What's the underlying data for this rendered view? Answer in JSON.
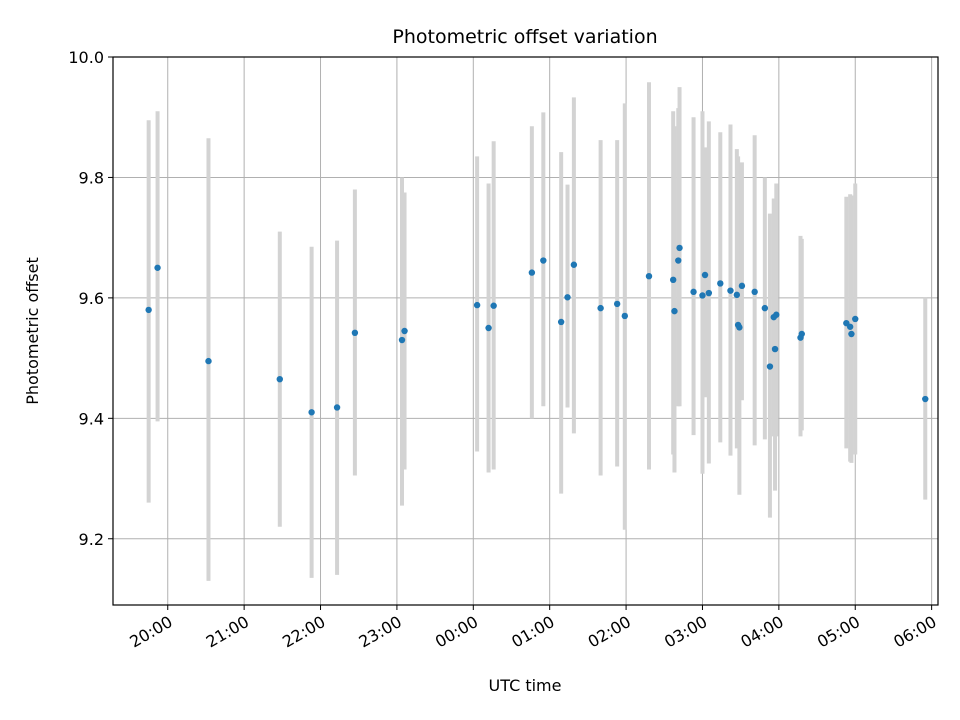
{
  "chart_data": {
    "type": "scatter",
    "title": "Photometric offset variation",
    "xlabel": "UTC time",
    "ylabel": "Photometric offset",
    "grid": true,
    "ylim": [
      9.09,
      10.0
    ],
    "xlim": [
      "19:17",
      "06:05"
    ],
    "colors": {
      "points": "#1f77b4",
      "errorbars": "#d3d3d3",
      "grid": "#b0b0b0"
    },
    "x_ticks": [
      "20:00",
      "21:00",
      "22:00",
      "23:00",
      "00:00",
      "01:00",
      "02:00",
      "03:00",
      "04:00",
      "05:00",
      "06:00"
    ],
    "y_ticks": [
      "9.2",
      "9.4",
      "9.6",
      "9.8",
      "10.0"
    ],
    "series": [
      {
        "x": [
          "19:45",
          "19:52",
          "20:32",
          "21:28",
          "21:53",
          "22:13",
          "22:27",
          "23:04",
          "23:06",
          "00:03",
          "00:12",
          "00:16",
          "00:46",
          "00:55",
          "01:09",
          "01:14",
          "01:19",
          "01:40",
          "01:53",
          "01:59",
          "02:18",
          "02:37",
          "02:38",
          "02:41",
          "02:42",
          "02:53",
          "03:00",
          "03:02",
          "03:05",
          "03:14",
          "03:22",
          "03:27",
          "03:28",
          "03:29",
          "03:31",
          "03:41",
          "03:49",
          "03:53",
          "03:56",
          "03:57",
          "03:58",
          "04:17",
          "04:18",
          "04:53",
          "04:56",
          "04:57",
          "05:00"
        ],
        "values": [
          9.58,
          9.65,
          9.495,
          9.465,
          9.41,
          9.418,
          9.542,
          9.53,
          9.545,
          9.588,
          9.55,
          9.587,
          9.642,
          9.662,
          9.56,
          9.601,
          9.655,
          9.583,
          9.59,
          9.57,
          9.636,
          9.63,
          9.578,
          9.662,
          9.683,
          9.61,
          9.604,
          9.638,
          9.608,
          9.624,
          9.612,
          9.605,
          9.555,
          9.551,
          9.62,
          9.61,
          9.583,
          9.486,
          9.568,
          9.515,
          9.572,
          9.534,
          9.54,
          9.558,
          9.552,
          9.54,
          9.565
        ],
        "ylow": [
          9.26,
          9.395,
          9.13,
          9.22,
          9.135,
          9.14,
          9.305,
          9.255,
          9.315,
          9.345,
          9.31,
          9.315,
          9.4,
          9.42,
          9.275,
          9.418,
          9.375,
          9.305,
          9.32,
          9.215,
          9.315,
          9.34,
          9.31,
          9.42,
          9.42,
          9.372,
          9.308,
          9.435,
          9.325,
          9.36,
          9.338,
          9.35,
          9.355,
          9.273,
          9.43,
          9.355,
          9.365,
          9.235,
          9.37,
          9.28,
          9.37,
          9.37,
          9.38,
          9.35,
          9.328,
          9.326,
          9.34
        ],
        "yhigh": [
          9.895,
          9.91,
          9.865,
          9.71,
          9.685,
          9.695,
          9.78,
          9.8,
          9.775,
          9.835,
          9.79,
          9.86,
          9.885,
          9.908,
          9.842,
          9.788,
          9.933,
          9.862,
          9.862,
          9.923,
          9.958,
          9.91,
          9.885,
          9.915,
          9.95,
          9.9,
          9.91,
          9.85,
          9.893,
          9.875,
          9.888,
          9.847,
          9.835,
          9.81,
          9.825,
          9.87,
          9.8,
          9.74,
          9.765,
          9.75,
          9.79,
          9.703,
          9.698,
          9.768,
          9.772,
          9.77,
          9.79
        ]
      },
      {
        "x": [
          "05:55"
        ],
        "values": [
          9.432
        ],
        "ylow": [
          9.265
        ],
        "yhigh": [
          9.6
        ]
      }
    ]
  }
}
